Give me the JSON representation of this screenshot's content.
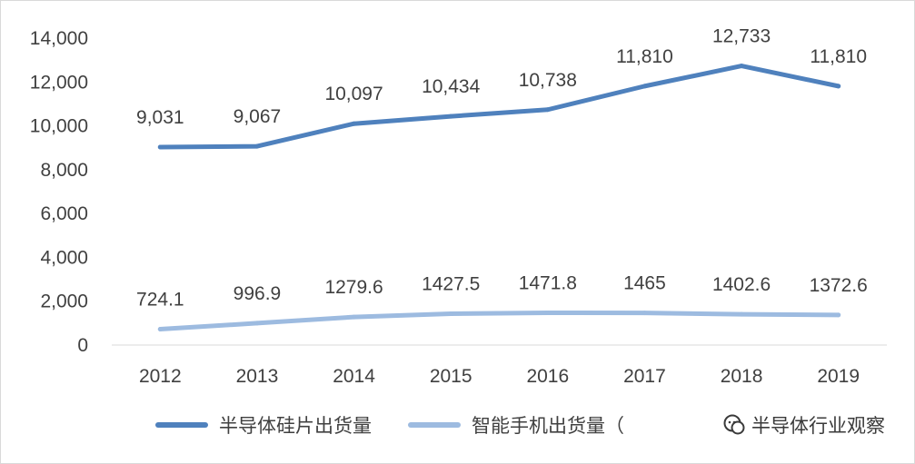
{
  "chart_data": {
    "type": "line",
    "categories": [
      "2012",
      "2013",
      "2014",
      "2015",
      "2016",
      "2017",
      "2018",
      "2019"
    ],
    "ylim": [
      0,
      14000
    ],
    "yticks": [
      0,
      2000,
      4000,
      6000,
      8000,
      10000,
      12000,
      14000
    ],
    "ytick_labels": [
      "0",
      "2,000",
      "4,000",
      "6,000",
      "8,000",
      "10,000",
      "12,000",
      "14,000"
    ],
    "grid": false,
    "legend_position": "bottom",
    "series": [
      {
        "name": "半导体硅片出货量",
        "color": "#4f81bd",
        "values": [
          9031,
          9067,
          10097,
          10434,
          10738,
          11810,
          12733,
          11810
        ],
        "labels": [
          "9,031",
          "9,067",
          "10,097",
          "10,434",
          "10,738",
          "11,810",
          "12,733",
          "11,810"
        ]
      },
      {
        "name": "智能手机出货量（",
        "color": "#9dbbe0",
        "values": [
          724.1,
          996.9,
          1279.6,
          1427.5,
          1471.8,
          1465,
          1402.6,
          1372.6
        ],
        "labels": [
          "724.1",
          "996.9",
          "1279.6",
          "1427.5",
          "1471.8",
          "1465",
          "1402.6",
          "1372.6"
        ]
      }
    ]
  },
  "watermark": {
    "icon": "wechat-icon",
    "text": "半导体行业观察"
  }
}
